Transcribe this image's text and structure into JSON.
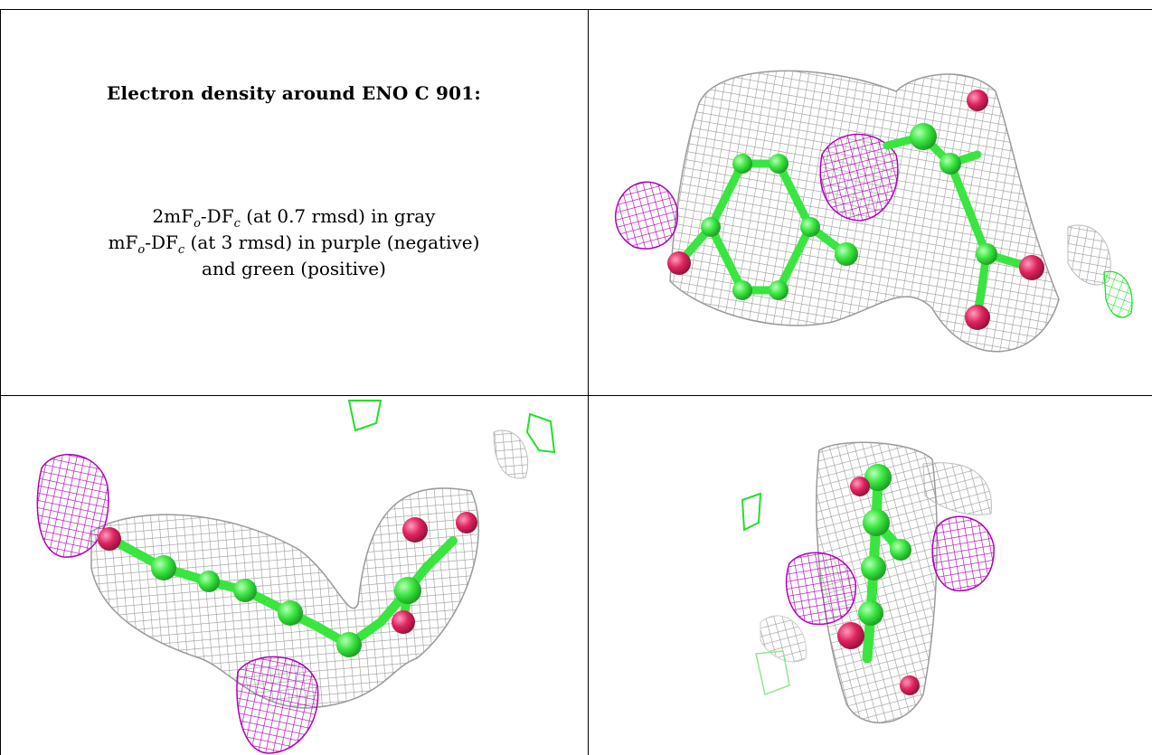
{
  "caption": {
    "title": "Electron density around ENO C 901:",
    "line1": {
      "a": "2mF",
      "s1": "o",
      "b": "-DF",
      "s2": "c",
      "c": " (at 0.7 rmsd) in gray"
    },
    "line2": {
      "a": "mF",
      "s1": "o",
      "b": "-DF",
      "s2": "c",
      "c": " (at 3 rmsd) in purple (negative)"
    },
    "line3": "and green (positive)"
  },
  "colors": {
    "mesh_gray": "#9a9a9a",
    "mesh_purple": "#b000b8",
    "mesh_green": "#22e02a",
    "atom_carbon": "#39e53f",
    "atom_oxygen": "#e0245e",
    "border": "#000000"
  },
  "panels": [
    {
      "view": "top-right"
    },
    {
      "view": "bottom-left"
    },
    {
      "view": "bottom-right"
    }
  ]
}
